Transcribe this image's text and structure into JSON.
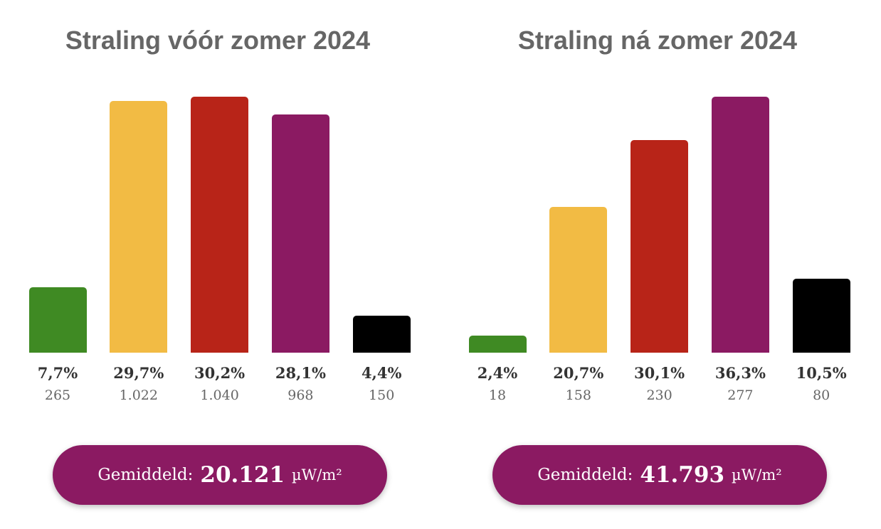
{
  "chart_data": [
    {
      "type": "bar",
      "title": "Straling vóór zomer 2024",
      "colors": [
        "#3F8A23",
        "#F2BB44",
        "#B82418",
        "#8B1A62",
        "#000000"
      ],
      "percent_labels": [
        "7,7%",
        "29,7%",
        "30,2%",
        "28,1%",
        "4,4%"
      ],
      "percents": [
        7.7,
        29.7,
        30.2,
        28.1,
        4.4
      ],
      "value_labels": [
        "265",
        "1.022",
        "1.040",
        "968",
        "150"
      ],
      "average": {
        "label": "Gemiddeld:",
        "value": "20.121",
        "unit": "µW/m²"
      }
    },
    {
      "type": "bar",
      "title": "Straling ná zomer 2024",
      "colors": [
        "#3F8A23",
        "#F2BB44",
        "#B82418",
        "#8B1A62",
        "#000000"
      ],
      "percent_labels": [
        "2,4%",
        "20,7%",
        "30,1%",
        "36,3%",
        "10,5%"
      ],
      "percents": [
        2.4,
        20.7,
        30.1,
        36.3,
        10.5
      ],
      "value_labels": [
        "18",
        "158",
        "230",
        "277",
        "80"
      ],
      "average": {
        "label": "Gemiddeld:",
        "value": "41.793",
        "unit": "µW/m²"
      }
    }
  ]
}
